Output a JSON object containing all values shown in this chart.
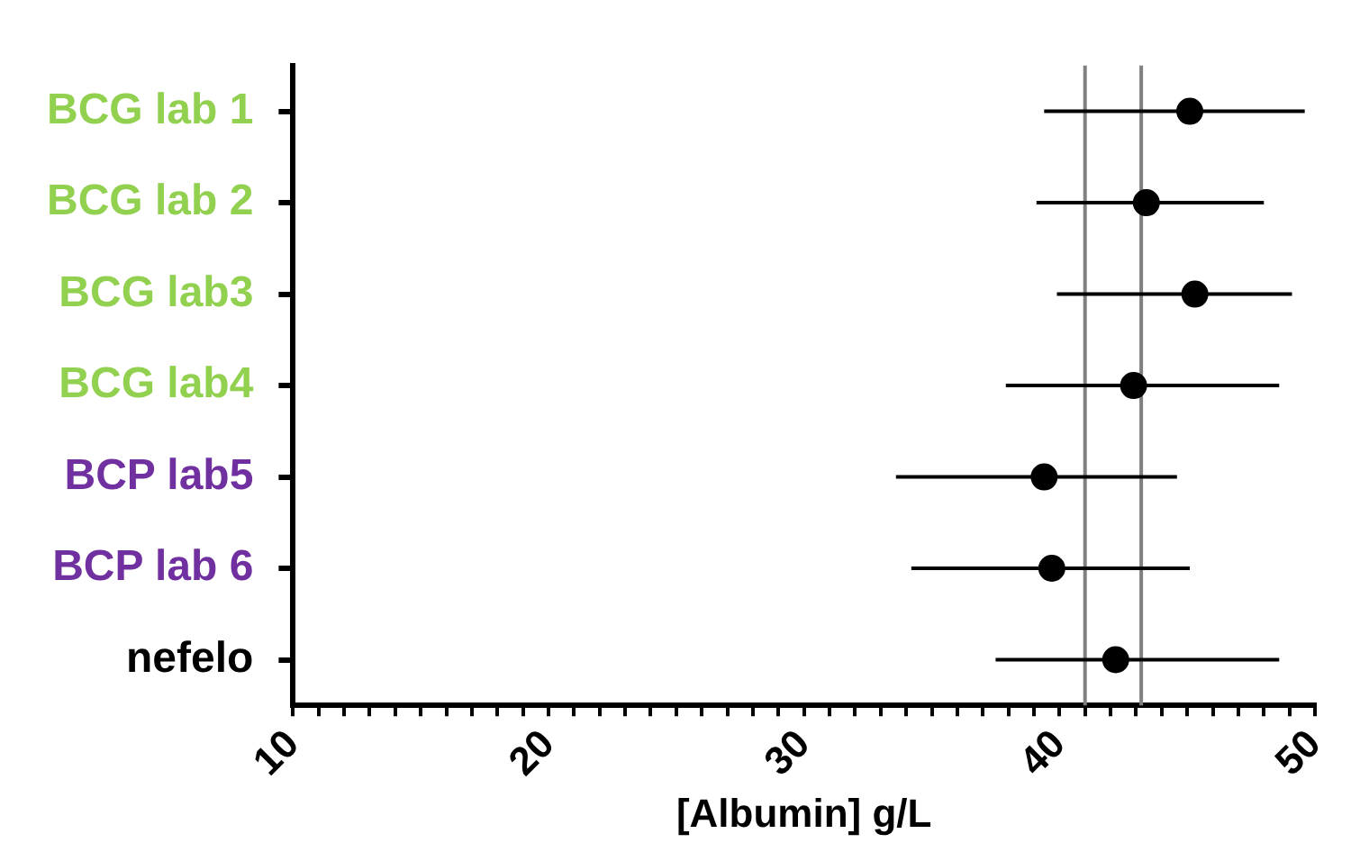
{
  "chart_data": {
    "type": "scatter",
    "orientation": "horizontal",
    "xlabel": "[Albumin] g/L",
    "categories": [
      "BCG lab 1",
      "BCG lab 2",
      "BCG lab3",
      "BCG lab4",
      "BCP lab5",
      "BCP lab 6",
      "nefelo"
    ],
    "values": [
      45.1,
      43.4,
      45.3,
      42.9,
      39.4,
      39.7,
      42.2
    ],
    "errors": [
      [
        39.4,
        49.6
      ],
      [
        39.1,
        48.0
      ],
      [
        39.9,
        49.1
      ],
      [
        37.9,
        48.6
      ],
      [
        33.6,
        44.6
      ],
      [
        34.2,
        45.1
      ],
      [
        37.5,
        48.6
      ]
    ],
    "color": "#000000",
    "marker": "circle",
    "xlim": [
      10,
      50
    ],
    "xticks": [
      10,
      {
        "value": 11,
        "label": null
      },
      {
        "value": 12,
        "label": null
      },
      {
        "value": 13,
        "label": null
      },
      {
        "value": 14,
        "label": null
      },
      {
        "value": 15,
        "label": null
      },
      {
        "value": 16,
        "label": null
      },
      {
        "value": 17,
        "label": null
      },
      {
        "value": 18,
        "label": null
      },
      {
        "value": 19,
        "label": null
      },
      20,
      {
        "value": 21,
        "label": null
      },
      {
        "value": 22,
        "label": null
      },
      {
        "value": 23,
        "label": null
      },
      {
        "value": 24,
        "label": null
      },
      {
        "value": 25,
        "label": null
      },
      {
        "value": 26,
        "label": null
      },
      {
        "value": 27,
        "label": null
      },
      {
        "value": 28,
        "label": null
      },
      {
        "value": 29,
        "label": null
      },
      30,
      {
        "value": 31,
        "label": null
      },
      {
        "value": 32,
        "label": null
      },
      {
        "value": 33,
        "label": null
      },
      {
        "value": 34,
        "label": null
      },
      {
        "value": 35,
        "label": null
      },
      {
        "value": 36,
        "label": null
      },
      {
        "value": 37,
        "label": null
      },
      {
        "value": 38,
        "label": null
      },
      {
        "value": 39,
        "label": null
      },
      40,
      {
        "value": 41,
        "label": null
      },
      {
        "value": 42,
        "label": null
      },
      {
        "value": 43,
        "label": null
      },
      {
        "value": 44,
        "label": null
      },
      {
        "value": 45,
        "label": null
      },
      {
        "value": 46,
        "label": null
      },
      {
        "value": 47,
        "label": null
      },
      {
        "value": 48,
        "label": null
      },
      {
        "value": 49,
        "label": null
      },
      50
    ],
    "ref_lines": [
      {
        "axis": "x",
        "value": 41,
        "color": "#808080"
      },
      {
        "axis": "x",
        "value": 43.2,
        "color": "#808080"
      }
    ],
    "grid": false,
    "legend": false
  }
}
